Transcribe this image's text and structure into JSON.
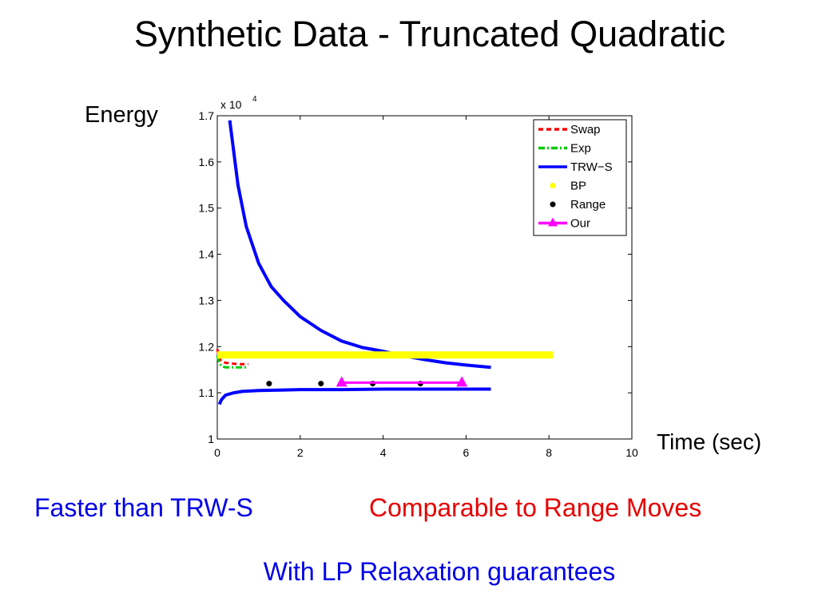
{
  "slide": {
    "title": "Synthetic Data - Truncated Quadratic",
    "caption_left": "Faster than TRW-S",
    "caption_right": "Comparable to Range Moves",
    "caption_bottom": "With LP Relaxation guarantees"
  },
  "chart_data": {
    "type": "line",
    "title": "",
    "xlabel": "Time (sec)",
    "ylabel": "Energy",
    "xlim": [
      0,
      10
    ],
    "ylim": [
      1.0,
      1.7
    ],
    "y_multiplier_label": "x 10",
    "y_multiplier_exp": "4",
    "x_ticks": [
      0,
      2,
      4,
      6,
      8,
      10
    ],
    "x_tick_labels": [
      "0",
      "2",
      "4",
      "6",
      "8",
      "10"
    ],
    "y_ticks": [
      1.0,
      1.1,
      1.2,
      1.3,
      1.4,
      1.5,
      1.6,
      1.7
    ],
    "y_tick_labels": [
      "1",
      "1.1",
      "1.2",
      "1.3",
      "1.4",
      "1.5",
      "1.6",
      "1.7"
    ],
    "grid": false,
    "legend_position": "top-right",
    "series": [
      {
        "name": "Swap",
        "color": "#ff0000",
        "style": "dashed",
        "x": [
          0.0,
          0.05,
          0.1,
          0.2,
          0.4,
          0.6,
          0.75
        ],
        "y": [
          1.195,
          1.175,
          1.168,
          1.165,
          1.163,
          1.162,
          1.162
        ]
      },
      {
        "name": "Exp",
        "color": "#00cc00",
        "style": "dashdot",
        "x": [
          0.0,
          0.05,
          0.1,
          0.2,
          0.4,
          0.6,
          0.75
        ],
        "y": [
          1.18,
          1.165,
          1.158,
          1.155,
          1.155,
          1.155,
          1.155
        ]
      },
      {
        "name": "TRW-S",
        "color": "#0000ff",
        "style": "solid",
        "x": [
          0.3,
          0.5,
          0.7,
          1.0,
          1.3,
          1.6,
          2.0,
          2.5,
          3.0,
          3.5,
          4.0,
          4.5,
          5.0,
          5.5,
          6.0,
          6.6
        ],
        "y": [
          1.69,
          1.55,
          1.46,
          1.38,
          1.33,
          1.3,
          1.265,
          1.235,
          1.212,
          1.198,
          1.19,
          1.18,
          1.172,
          1.165,
          1.16,
          1.155
        ]
      },
      {
        "name": "TRW-S",
        "color": "#0000ff",
        "style": "solid",
        "x": [
          0.05,
          0.1,
          0.2,
          0.4,
          0.6,
          1.0,
          1.5,
          2.0,
          3.0,
          4.0,
          5.0,
          6.0,
          6.6
        ],
        "y": [
          1.075,
          1.085,
          1.095,
          1.1,
          1.103,
          1.105,
          1.106,
          1.107,
          1.107,
          1.108,
          1.108,
          1.108,
          1.108
        ]
      },
      {
        "name": "BP",
        "color": "#ffff00",
        "style": "dotted",
        "x": [
          0.0,
          8.1
        ],
        "y": [
          1.182,
          1.182
        ]
      },
      {
        "name": "Range",
        "color": "#000000",
        "style": "marker",
        "x": [
          1.25,
          2.5,
          3.75,
          4.9
        ],
        "y": [
          1.12,
          1.12,
          1.12,
          1.12
        ]
      },
      {
        "name": "Our",
        "color": "#ff00ff",
        "style": "solid-triangle",
        "x": [
          3.0,
          5.9
        ],
        "y": [
          1.122,
          1.122
        ]
      }
    ],
    "legend": [
      {
        "label": "Swap",
        "color": "#ff0000",
        "style": "dashed"
      },
      {
        "label": "Exp",
        "color": "#00cc00",
        "style": "dashdot"
      },
      {
        "label": "TRW−S",
        "color": "#0000ff",
        "style": "solid"
      },
      {
        "label": "BP",
        "color": "#ffff00",
        "style": "dot"
      },
      {
        "label": "Range",
        "color": "#000000",
        "style": "dot"
      },
      {
        "label": "Our",
        "color": "#ff00ff",
        "style": "solid-triangle"
      }
    ]
  }
}
